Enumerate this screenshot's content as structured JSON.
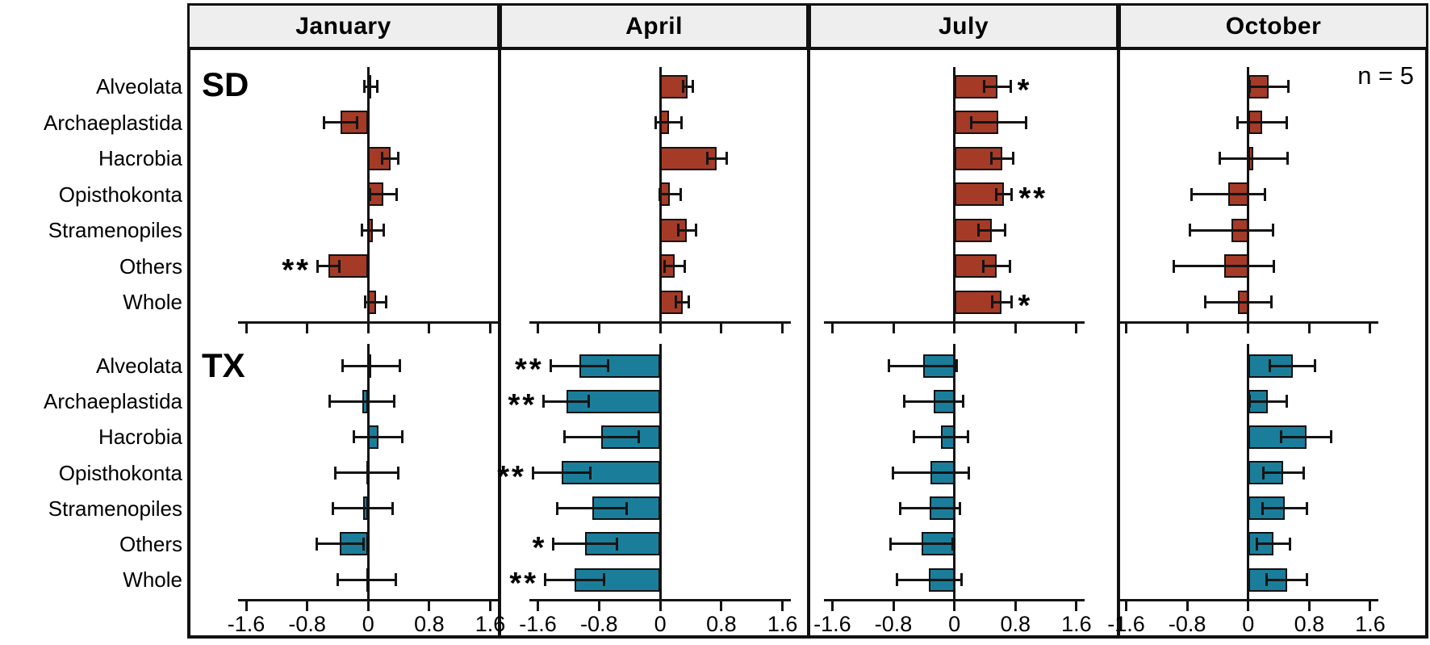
{
  "chart_data": {
    "type": "bar",
    "orientation": "horizontal",
    "columns": [
      "January",
      "April",
      "July",
      "October"
    ],
    "row_groups": [
      "SD",
      "TX"
    ],
    "categories": [
      "Alveolata",
      "Archaeplastida",
      "Hacrobia",
      "Opisthokonta",
      "Stramenopiles",
      "Others",
      "Whole"
    ],
    "annotation": "n = 5",
    "x_ticks": [
      -1.6,
      -0.8,
      0,
      0.8,
      1.6
    ],
    "x_tick_labels": [
      "-1.6",
      "-0.8",
      "0",
      "0.8",
      "1.6"
    ],
    "xlim_per_column": {
      "January": [
        -2.33,
        1.7
      ],
      "April": [
        -2.08,
        1.92
      ],
      "July": [
        -1.89,
        2.13
      ],
      "October": [
        -1.68,
        2.32
      ]
    },
    "colors": {
      "SD": "#A53B26",
      "TX": "#1A7E9B",
      "line": "#141414",
      "header_bg": "#EEEEEE"
    },
    "error_bars": "whiskers centered on bar value, half-width = error",
    "significance_marks": [
      "*",
      "**"
    ],
    "panels": [
      {
        "row": "SD",
        "column": "January",
        "bars": [
          {
            "category": "Alveolata",
            "value": 0.03,
            "error": 0.09,
            "sig": ""
          },
          {
            "category": "Archaeplastida",
            "value": -0.36,
            "error": 0.22,
            "sig": ""
          },
          {
            "category": "Hacrobia",
            "value": 0.29,
            "error": 0.11,
            "sig": ""
          },
          {
            "category": "Opisthokonta",
            "value": 0.2,
            "error": 0.18,
            "sig": ""
          },
          {
            "category": "Stramenopiles",
            "value": 0.06,
            "error": 0.15,
            "sig": ""
          },
          {
            "category": "Others",
            "value": -0.52,
            "error": 0.15,
            "sig": "**"
          },
          {
            "category": "Whole",
            "value": 0.1,
            "error": 0.14,
            "sig": ""
          }
        ]
      },
      {
        "row": "SD",
        "column": "April",
        "bars": [
          {
            "category": "Alveolata",
            "value": 0.36,
            "error": 0.07,
            "sig": ""
          },
          {
            "category": "Archaeplastida",
            "value": 0.11,
            "error": 0.17,
            "sig": ""
          },
          {
            "category": "Hacrobia",
            "value": 0.74,
            "error": 0.13,
            "sig": ""
          },
          {
            "category": "Opisthokonta",
            "value": 0.13,
            "error": 0.14,
            "sig": ""
          },
          {
            "category": "Stramenopiles",
            "value": 0.35,
            "error": 0.12,
            "sig": ""
          },
          {
            "category": "Others",
            "value": 0.19,
            "error": 0.14,
            "sig": ""
          },
          {
            "category": "Whole",
            "value": 0.29,
            "error": 0.09,
            "sig": ""
          }
        ]
      },
      {
        "row": "SD",
        "column": "July",
        "bars": [
          {
            "category": "Alveolata",
            "value": 0.56,
            "error": 0.18,
            "sig": "*"
          },
          {
            "category": "Archaeplastida",
            "value": 0.58,
            "error": 0.37,
            "sig": ""
          },
          {
            "category": "Hacrobia",
            "value": 0.63,
            "error": 0.15,
            "sig": ""
          },
          {
            "category": "Opisthokonta",
            "value": 0.65,
            "error": 0.11,
            "sig": "**"
          },
          {
            "category": "Stramenopiles",
            "value": 0.49,
            "error": 0.18,
            "sig": ""
          },
          {
            "category": "Others",
            "value": 0.55,
            "error": 0.18,
            "sig": ""
          },
          {
            "category": "Whole",
            "value": 0.62,
            "error": 0.13,
            "sig": "*"
          }
        ]
      },
      {
        "row": "SD",
        "column": "October",
        "bars": [
          {
            "category": "Alveolata",
            "value": 0.27,
            "error": 0.26,
            "sig": ""
          },
          {
            "category": "Archaeplastida",
            "value": 0.18,
            "error": 0.33,
            "sig": ""
          },
          {
            "category": "Hacrobia",
            "value": 0.07,
            "error": 0.45,
            "sig": ""
          },
          {
            "category": "Opisthokonta",
            "value": -0.26,
            "error": 0.49,
            "sig": ""
          },
          {
            "category": "Stramenopiles",
            "value": -0.22,
            "error": 0.55,
            "sig": ""
          },
          {
            "category": "Others",
            "value": -0.32,
            "error": 0.66,
            "sig": ""
          },
          {
            "category": "Whole",
            "value": -0.13,
            "error": 0.44,
            "sig": ""
          }
        ]
      },
      {
        "row": "TX",
        "column": "January",
        "bars": [
          {
            "category": "Alveolata",
            "value": 0.04,
            "error": 0.38,
            "sig": ""
          },
          {
            "category": "Archaeplastida",
            "value": -0.08,
            "error": 0.43,
            "sig": ""
          },
          {
            "category": "Hacrobia",
            "value": 0.13,
            "error": 0.32,
            "sig": ""
          },
          {
            "category": "Opisthokonta",
            "value": -0.02,
            "error": 0.42,
            "sig": ""
          },
          {
            "category": "Stramenopiles",
            "value": -0.07,
            "error": 0.4,
            "sig": ""
          },
          {
            "category": "Others",
            "value": -0.37,
            "error": 0.31,
            "sig": ""
          },
          {
            "category": "Whole",
            "value": -0.02,
            "error": 0.39,
            "sig": ""
          }
        ]
      },
      {
        "row": "TX",
        "column": "April",
        "bars": [
          {
            "category": "Alveolata",
            "value": -1.06,
            "error": 0.38,
            "sig": "**"
          },
          {
            "category": "Archaeplastida",
            "value": -1.23,
            "error": 0.3,
            "sig": "**"
          },
          {
            "category": "Hacrobia",
            "value": -0.77,
            "error": 0.49,
            "sig": ""
          },
          {
            "category": "Opisthokonta",
            "value": -1.29,
            "error": 0.38,
            "sig": "**"
          },
          {
            "category": "Stramenopiles",
            "value": -0.89,
            "error": 0.46,
            "sig": ""
          },
          {
            "category": "Others",
            "value": -0.98,
            "error": 0.42,
            "sig": "*"
          },
          {
            "category": "Whole",
            "value": -1.12,
            "error": 0.39,
            "sig": "**"
          }
        ]
      },
      {
        "row": "TX",
        "column": "July",
        "bars": [
          {
            "category": "Alveolata",
            "value": -0.41,
            "error": 0.45,
            "sig": ""
          },
          {
            "category": "Archaeplastida",
            "value": -0.27,
            "error": 0.39,
            "sig": ""
          },
          {
            "category": "Hacrobia",
            "value": -0.18,
            "error": 0.36,
            "sig": ""
          },
          {
            "category": "Opisthokonta",
            "value": -0.31,
            "error": 0.5,
            "sig": ""
          },
          {
            "category": "Stramenopiles",
            "value": -0.32,
            "error": 0.4,
            "sig": ""
          },
          {
            "category": "Others",
            "value": -0.43,
            "error": 0.41,
            "sig": ""
          },
          {
            "category": "Whole",
            "value": -0.33,
            "error": 0.43,
            "sig": ""
          }
        ]
      },
      {
        "row": "TX",
        "column": "October",
        "bars": [
          {
            "category": "Alveolata",
            "value": 0.58,
            "error": 0.3,
            "sig": ""
          },
          {
            "category": "Archaeplastida",
            "value": 0.26,
            "error": 0.25,
            "sig": ""
          },
          {
            "category": "Hacrobia",
            "value": 0.76,
            "error": 0.33,
            "sig": ""
          },
          {
            "category": "Opisthokonta",
            "value": 0.46,
            "error": 0.27,
            "sig": ""
          },
          {
            "category": "Stramenopiles",
            "value": 0.48,
            "error": 0.3,
            "sig": ""
          },
          {
            "category": "Others",
            "value": 0.33,
            "error": 0.22,
            "sig": ""
          },
          {
            "category": "Whole",
            "value": 0.51,
            "error": 0.27,
            "sig": ""
          }
        ]
      }
    ]
  }
}
